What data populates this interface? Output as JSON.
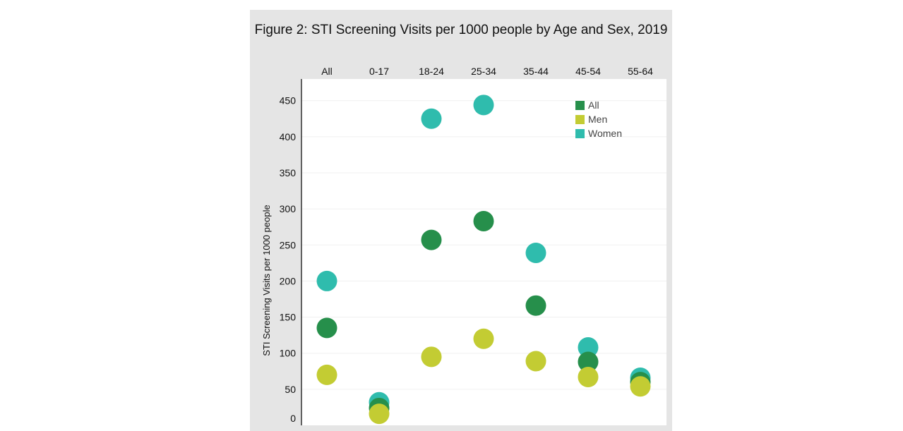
{
  "chart_data": {
    "type": "scatter",
    "title": "Figure 2: STI Screening Visits per 1000 people by Age and Sex, 2019",
    "xlabel": "",
    "ylabel": "STI Screening Visits per 1000 people",
    "categories": [
      "All",
      "0-17",
      "18-24",
      "25-34",
      "35-44",
      "45-54",
      "55-64"
    ],
    "x_axis_position": "top",
    "ylim": [
      0,
      480
    ],
    "yticks": [
      0,
      50,
      100,
      150,
      200,
      250,
      300,
      350,
      400,
      450
    ],
    "grid": true,
    "legend_placement": "top-right",
    "series": [
      {
        "name": "Women",
        "color": "#2fbcad",
        "values": [
          200,
          32,
          425,
          444,
          239,
          108,
          66
        ]
      },
      {
        "name": "All",
        "color": "#268f4b",
        "values": [
          135,
          24,
          257,
          283,
          166,
          88,
          60
        ]
      },
      {
        "name": "Men",
        "color": "#c3cc33",
        "values": [
          70,
          16,
          95,
          120,
          89,
          67,
          54
        ]
      }
    ],
    "legend": [
      "All",
      "Men",
      "Women"
    ]
  }
}
